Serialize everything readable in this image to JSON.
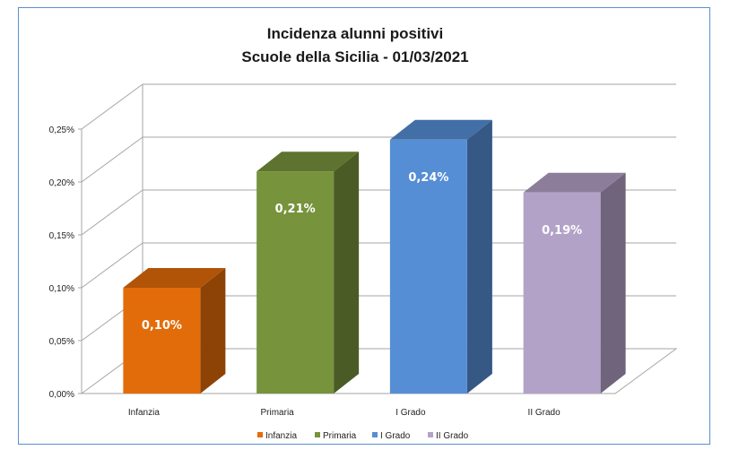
{
  "chart_data": {
    "type": "bar",
    "title": "Incidenza alunni positivi",
    "subtitle": "Scuole della Sicilia - 01/03/2021",
    "categories": [
      "Infanzia",
      "Primaria",
      "I Grado",
      "II Grado"
    ],
    "values": [
      0.1,
      0.21,
      0.24,
      0.19
    ],
    "data_labels": [
      "0,10%",
      "0,21%",
      "0,24%",
      "0,19%"
    ],
    "series": [
      {
        "name": "Infanzia",
        "color": "#e36c0a"
      },
      {
        "name": "Primaria",
        "color": "#77933c"
      },
      {
        "name": "I Grado",
        "color": "#558ed5"
      },
      {
        "name": "II Grado",
        "color": "#b3a2c7"
      }
    ],
    "ylim": [
      0,
      0.25
    ],
    "yticks": [
      0,
      0.05,
      0.1,
      0.15,
      0.2,
      0.25
    ],
    "ytick_labels": [
      "0,00%",
      "0,05%",
      "0,10%",
      "0,15%",
      "0,20%",
      "0,25%"
    ],
    "grid": true,
    "legend": "bottom",
    "style": "3d-column"
  }
}
